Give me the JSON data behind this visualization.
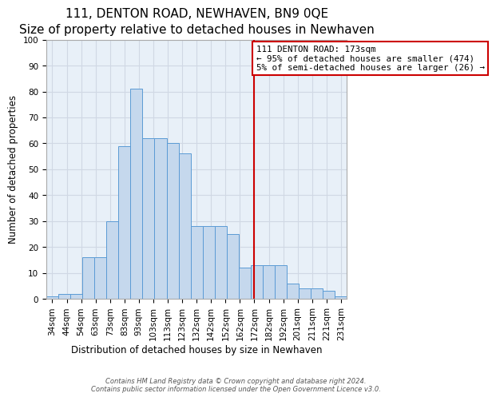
{
  "title": "111, DENTON ROAD, NEWHAVEN, BN9 0QE",
  "subtitle": "Size of property relative to detached houses in Newhaven",
  "xlabel": "Distribution of detached houses by size in Newhaven",
  "ylabel": "Number of detached properties",
  "bar_values": [
    1,
    2,
    2,
    16,
    16,
    30,
    59,
    81,
    62,
    62,
    60,
    56,
    28,
    28,
    28,
    25,
    12,
    13,
    13,
    13,
    6,
    4,
    4,
    3,
    1
  ],
  "x_labels": [
    "34sqm",
    "44sqm",
    "54sqm",
    "63sqm",
    "73sqm",
    "83sqm",
    "93sqm",
    "103sqm",
    "113sqm",
    "123sqm",
    "132sqm",
    "142sqm",
    "152sqm",
    "162sqm",
    "172sqm",
    "182sqm",
    "192sqm",
    "201sqm",
    "211sqm",
    "221sqm",
    "231sqm"
  ],
  "n_bars": 25,
  "bar_color": "#c5d8ed",
  "bar_edge_color": "#5b9bd5",
  "grid_color": "#d0d8e4",
  "annotation_title": "111 DENTON ROAD: 173sqm",
  "annotation_line1": "← 95% of detached houses are smaller (474)",
  "annotation_line2": "5% of semi-detached houses are larger (26) →",
  "annotation_box_color": "#ffffff",
  "annotation_border_color": "#cc0000",
  "red_line_color": "#cc0000",
  "ylim": [
    0,
    100
  ],
  "yticks": [
    0,
    10,
    20,
    30,
    40,
    50,
    60,
    70,
    80,
    90,
    100
  ],
  "footer1": "Contains HM Land Registry data © Crown copyright and database right 2024.",
  "footer2": "Contains public sector information licensed under the Open Government Licence v3.0.",
  "bg_color": "#e8f0f8",
  "fig_bg_color": "#ffffff",
  "title_fontsize": 11,
  "subtitle_fontsize": 9.5,
  "axis_label_fontsize": 8.5,
  "tick_fontsize": 7.5,
  "annotation_fontsize": 7.8,
  "footer_fontsize": 6.0
}
